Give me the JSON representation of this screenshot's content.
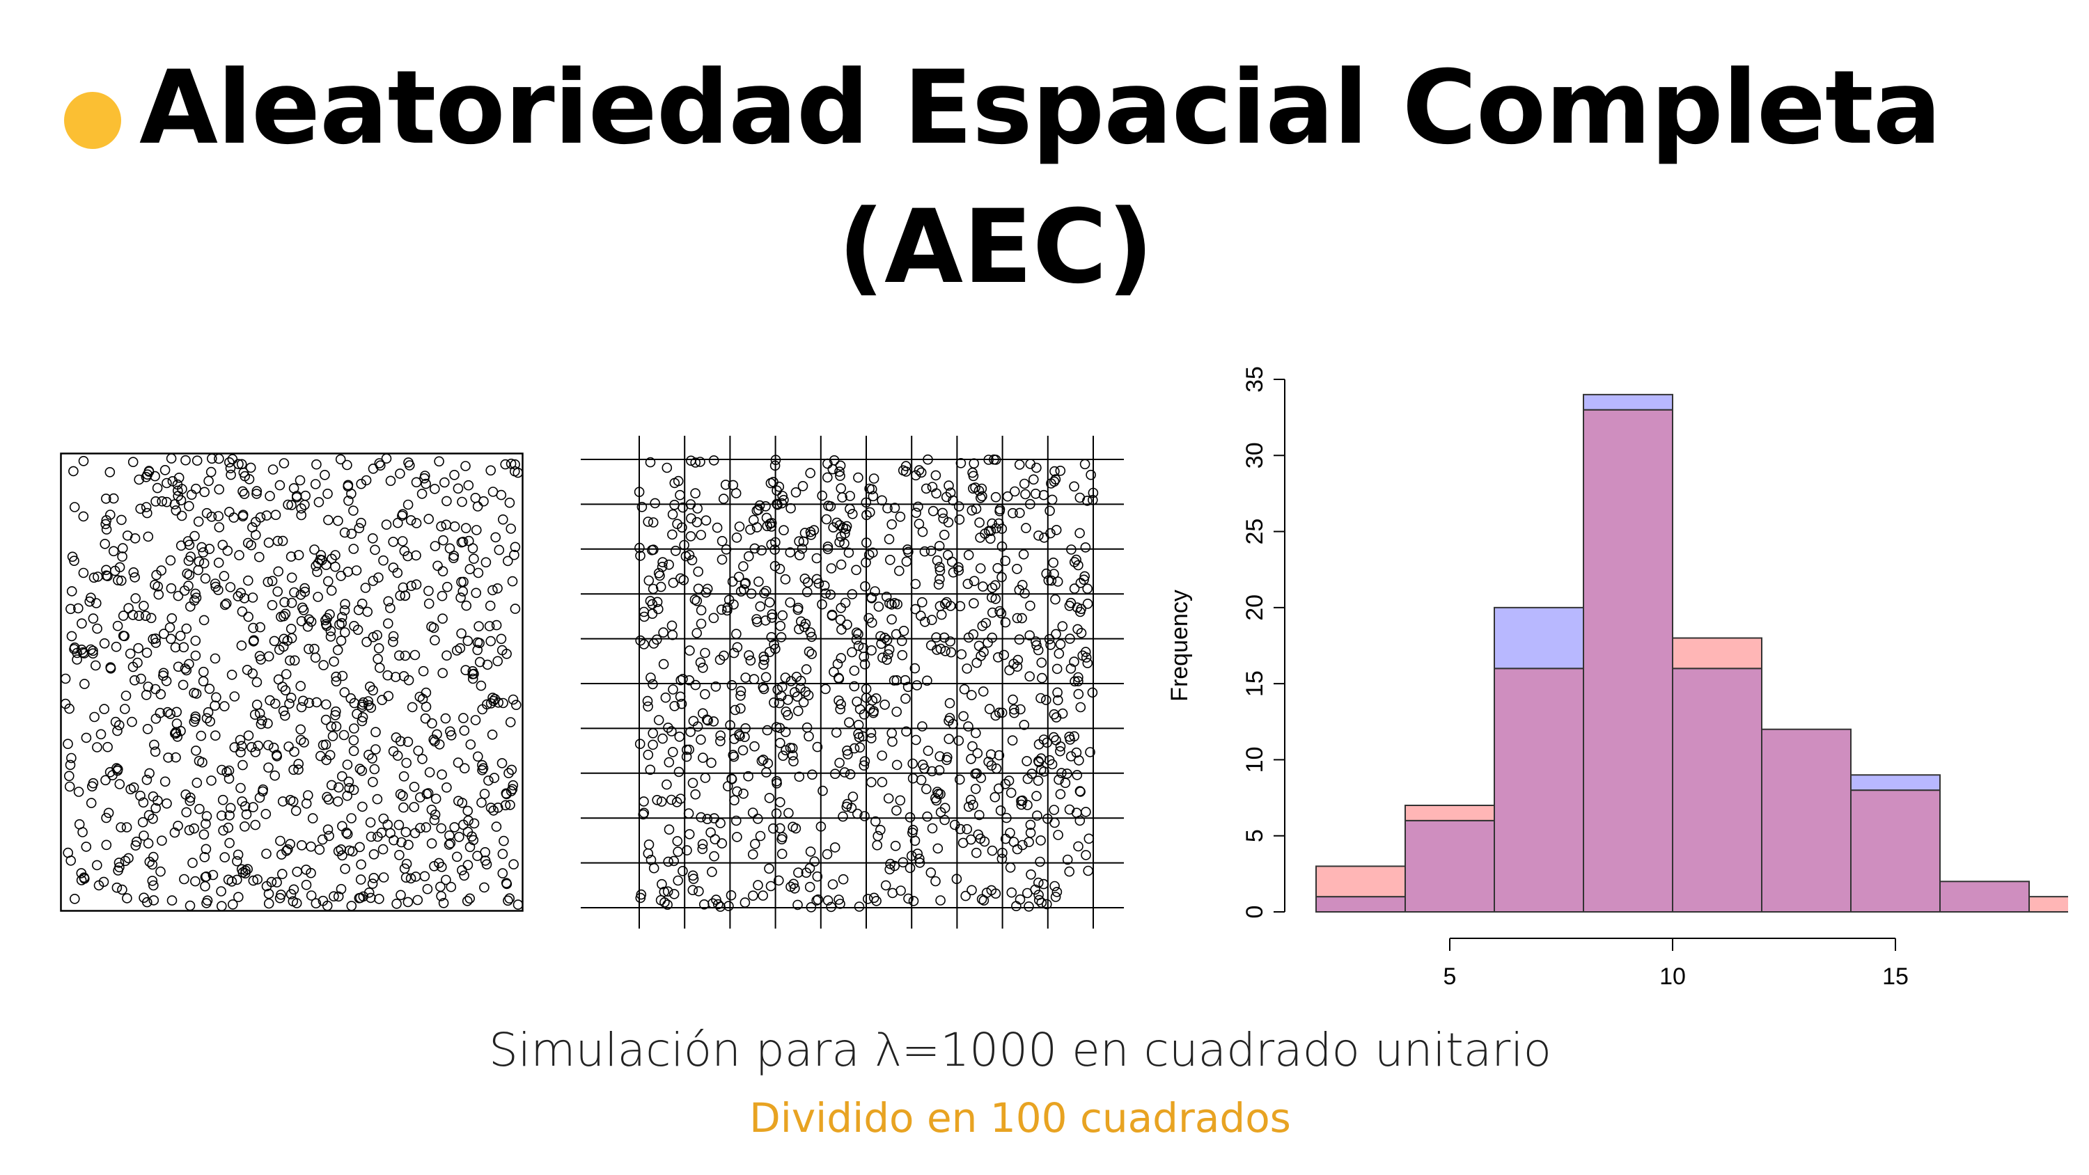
{
  "header": {
    "title_line1": "Aleatoriedad Espacial Completa",
    "title_line2": "(AEC)",
    "bullet_color": "#fbbf33"
  },
  "captions": {
    "line1": "Simulación para λ=1000 en cuadrado unitario",
    "line2": "Dividido en 100 cuadrados",
    "line2_color": "#e8a322"
  },
  "chart_data": [
    {
      "type": "scatter",
      "subtype": "point-pattern",
      "n_points": 1000,
      "xlim": [
        0,
        1
      ],
      "ylim": [
        0,
        1
      ],
      "grid": false,
      "marker": "open-circle"
    },
    {
      "type": "scatter",
      "subtype": "point-pattern-quadrats",
      "n_points": 1000,
      "xlim": [
        0,
        1
      ],
      "ylim": [
        0,
        1
      ],
      "grid": true,
      "quadrats": 100
    },
    {
      "type": "bar",
      "subtype": "overlapping-histogram",
      "ylabel": "Frequency",
      "bin_edges": [
        2,
        4,
        6,
        8,
        10,
        12,
        14,
        16,
        18,
        20
      ],
      "series": [
        {
          "color": "#ffb6b6",
          "values": [
            3,
            7,
            16,
            33,
            18,
            12,
            8,
            2,
            1
          ]
        },
        {
          "color": "#b8b8ff",
          "values": [
            1,
            6,
            20,
            34,
            16,
            12,
            9,
            2,
            0
          ]
        }
      ],
      "overlap_color": "#cf8ebf",
      "xticks": [
        5,
        10,
        15
      ],
      "yticks": [
        0,
        5,
        10,
        15,
        20,
        25,
        30,
        35
      ],
      "ylim": [
        0,
        35
      ]
    }
  ]
}
